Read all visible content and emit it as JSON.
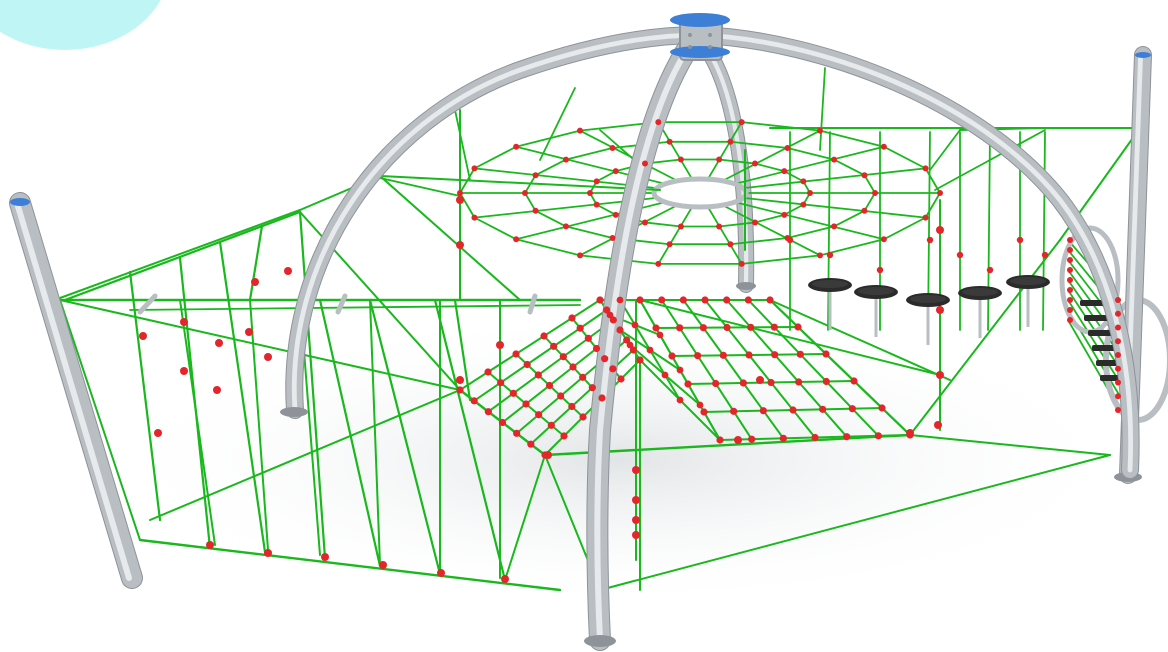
{
  "image": {
    "subject": "rope-net-climbing-playground-render",
    "colors": {
      "background": "#ffffff",
      "corner_blob": "#bff6f5",
      "steel": "#b9bec3",
      "steel_dark": "#8d9399",
      "steel_light": "#e7eaec",
      "rope": "#19b81d",
      "rope_dark": "#0f8f14",
      "connector": "#e3262b",
      "cap": "#3d7fd6",
      "seat": "#2b2b2b",
      "shadow": "#eceeef"
    },
    "icons": [
      "arch-frame",
      "spider-web-net",
      "cargo-net",
      "rope-curtain",
      "stepping-discs",
      "rope-tunnel",
      "steel-post"
    ]
  }
}
